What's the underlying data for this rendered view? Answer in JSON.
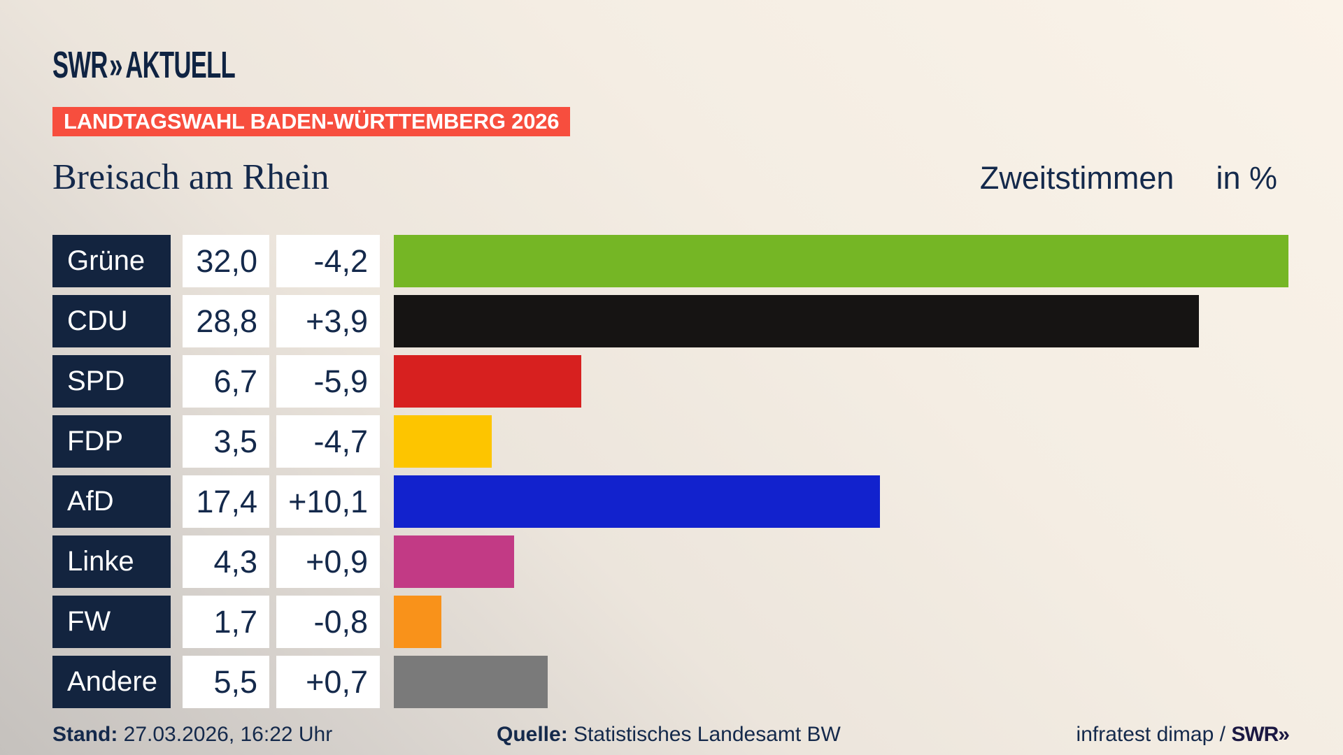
{
  "logo": {
    "swr": "SWR",
    "chevrons": "»",
    "aktuell": "AKTUELL"
  },
  "badge": "LANDTAGSWAHL BADEN-WÜRTTEMBERG 2026",
  "title": "Breisach am Rhein",
  "header": {
    "measure": "Zweitstimmen",
    "unit": "in %"
  },
  "footer": {
    "stand_label": "Stand:",
    "stand_value": "27.03.2026, 16:22 Uhr",
    "source_label": "Quelle:",
    "source_value": "Statistisches Landesamt BW",
    "credit": "infratest dimap /",
    "credit_logo": "SWR»"
  },
  "colors": {
    "background_top": "#faf3e9",
    "background_bottom": "#c5c1bd",
    "navy_box": "#13243f",
    "text_navy": "#14294b",
    "badge_red": "#f74e3e",
    "white": "#ffffff"
  },
  "chart_data": {
    "type": "bar",
    "title": "Landtagswahl Baden-Württemberg 2026 — Breisach am Rhein",
    "subtitle": "Zweitstimmen in %",
    "categories": [
      "Grüne",
      "CDU",
      "SPD",
      "FDP",
      "AfD",
      "Linke",
      "FW",
      "Andere"
    ],
    "series": [
      {
        "name": "Zweitstimmen %",
        "values": [
          32.0,
          28.8,
          6.7,
          3.5,
          17.4,
          4.3,
          1.7,
          5.5
        ]
      },
      {
        "name": "Veränderung",
        "values": [
          -4.2,
          3.9,
          -5.9,
          -4.7,
          10.1,
          0.9,
          -0.8,
          0.7
        ]
      }
    ],
    "value_labels": [
      "32,0",
      "28,8",
      "6,7",
      "3,5",
      "17,4",
      "4,3",
      "1,7",
      "5,5"
    ],
    "change_labels": [
      "-4,2",
      "+3,9",
      "-5,9",
      "-4,7",
      "+10,1",
      "+0,9",
      "-0,8",
      "+0,7"
    ],
    "bar_colors": [
      "#75b625",
      "#161413",
      "#d7201f",
      "#fdc500",
      "#1222cd",
      "#c23a85",
      "#f9921a",
      "#7a7a7a"
    ],
    "xlim": [
      0,
      32
    ],
    "orientation": "horizontal",
    "grid": false,
    "legend": false
  }
}
